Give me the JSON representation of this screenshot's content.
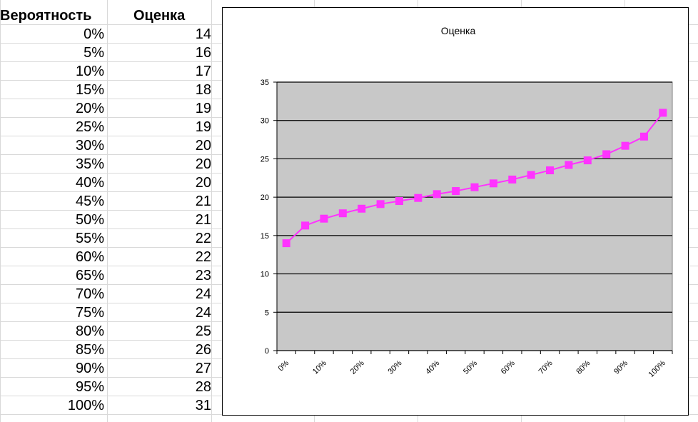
{
  "table": {
    "headers": [
      "Вероятность",
      "Оценка"
    ],
    "rows": [
      [
        "0%",
        "14"
      ],
      [
        "5%",
        "16"
      ],
      [
        "10%",
        "17"
      ],
      [
        "15%",
        "18"
      ],
      [
        "20%",
        "19"
      ],
      [
        "25%",
        "19"
      ],
      [
        "30%",
        "20"
      ],
      [
        "35%",
        "20"
      ],
      [
        "40%",
        "20"
      ],
      [
        "45%",
        "21"
      ],
      [
        "50%",
        "21"
      ],
      [
        "55%",
        "22"
      ],
      [
        "60%",
        "22"
      ],
      [
        "65%",
        "23"
      ],
      [
        "70%",
        "24"
      ],
      [
        "75%",
        "24"
      ],
      [
        "80%",
        "25"
      ],
      [
        "85%",
        "26"
      ],
      [
        "90%",
        "27"
      ],
      [
        "95%",
        "28"
      ],
      [
        "100%",
        "31"
      ]
    ]
  },
  "chart_data": {
    "type": "line",
    "title": "Оценка",
    "xlabel": "",
    "ylabel": "",
    "categories": [
      "0%",
      "5%",
      "10%",
      "15%",
      "20%",
      "25%",
      "30%",
      "35%",
      "40%",
      "45%",
      "50%",
      "55%",
      "60%",
      "65%",
      "70%",
      "75%",
      "80%",
      "85%",
      "90%",
      "95%",
      "100%"
    ],
    "x_tick_labels": [
      "0%",
      "10%",
      "20%",
      "30%",
      "40%",
      "50%",
      "60%",
      "70%",
      "80%",
      "90%",
      "100%"
    ],
    "series": [
      {
        "values": [
          14,
          16.3,
          17.2,
          17.9,
          18.5,
          19.1,
          19.5,
          19.9,
          20.4,
          20.8,
          21.3,
          21.8,
          22.3,
          22.9,
          23.5,
          24.2,
          24.8,
          25.6,
          26.7,
          27.9,
          31
        ]
      }
    ],
    "ylim": [
      0,
      35
    ],
    "y_ticks": [
      0,
      5,
      10,
      15,
      20,
      25,
      30,
      35
    ],
    "grid": true,
    "legend": "none",
    "colors": {
      "line": "#ff33ff",
      "marker": "#ff33ff",
      "plot_bg": "#c8c8c8",
      "grid": "#000000"
    }
  }
}
